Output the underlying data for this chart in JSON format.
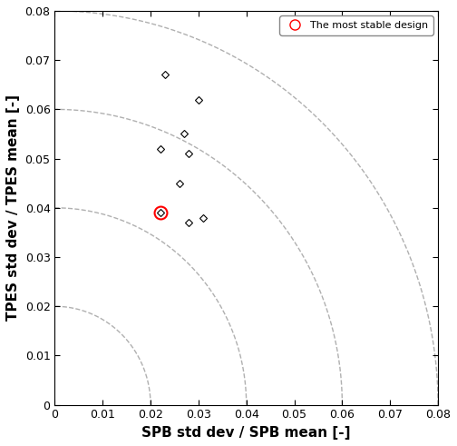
{
  "title": "",
  "xlabel": "SPB std dev / SPB mean [-]",
  "ylabel": "TPES std dev / TPES mean [-]",
  "xlim": [
    0,
    0.08
  ],
  "ylim": [
    0,
    0.08
  ],
  "xticks": [
    0,
    0.01,
    0.02,
    0.03,
    0.04,
    0.05,
    0.06,
    0.07,
    0.08
  ],
  "yticks": [
    0,
    0.01,
    0.02,
    0.03,
    0.04,
    0.05,
    0.06,
    0.07,
    0.08
  ],
  "data_points": [
    [
      0.023,
      0.067
    ],
    [
      0.03,
      0.062
    ],
    [
      0.022,
      0.052
    ],
    [
      0.027,
      0.055
    ],
    [
      0.028,
      0.051
    ],
    [
      0.026,
      0.045
    ],
    [
      0.028,
      0.037
    ],
    [
      0.031,
      0.038
    ]
  ],
  "most_stable": [
    0.022,
    0.039
  ],
  "arc_radii": [
    0.02,
    0.04,
    0.06,
    0.08
  ],
  "arc_color": "#b0b0b0",
  "point_color": "black",
  "stable_color": "red",
  "legend_label": "The most stable design",
  "background_color": "#ffffff",
  "font_size_axis_label": 11,
  "font_size_tick": 9,
  "marker_size": 4,
  "red_circle_size": 10,
  "figwidth": 5.04,
  "figheight": 4.91,
  "dpi": 100
}
